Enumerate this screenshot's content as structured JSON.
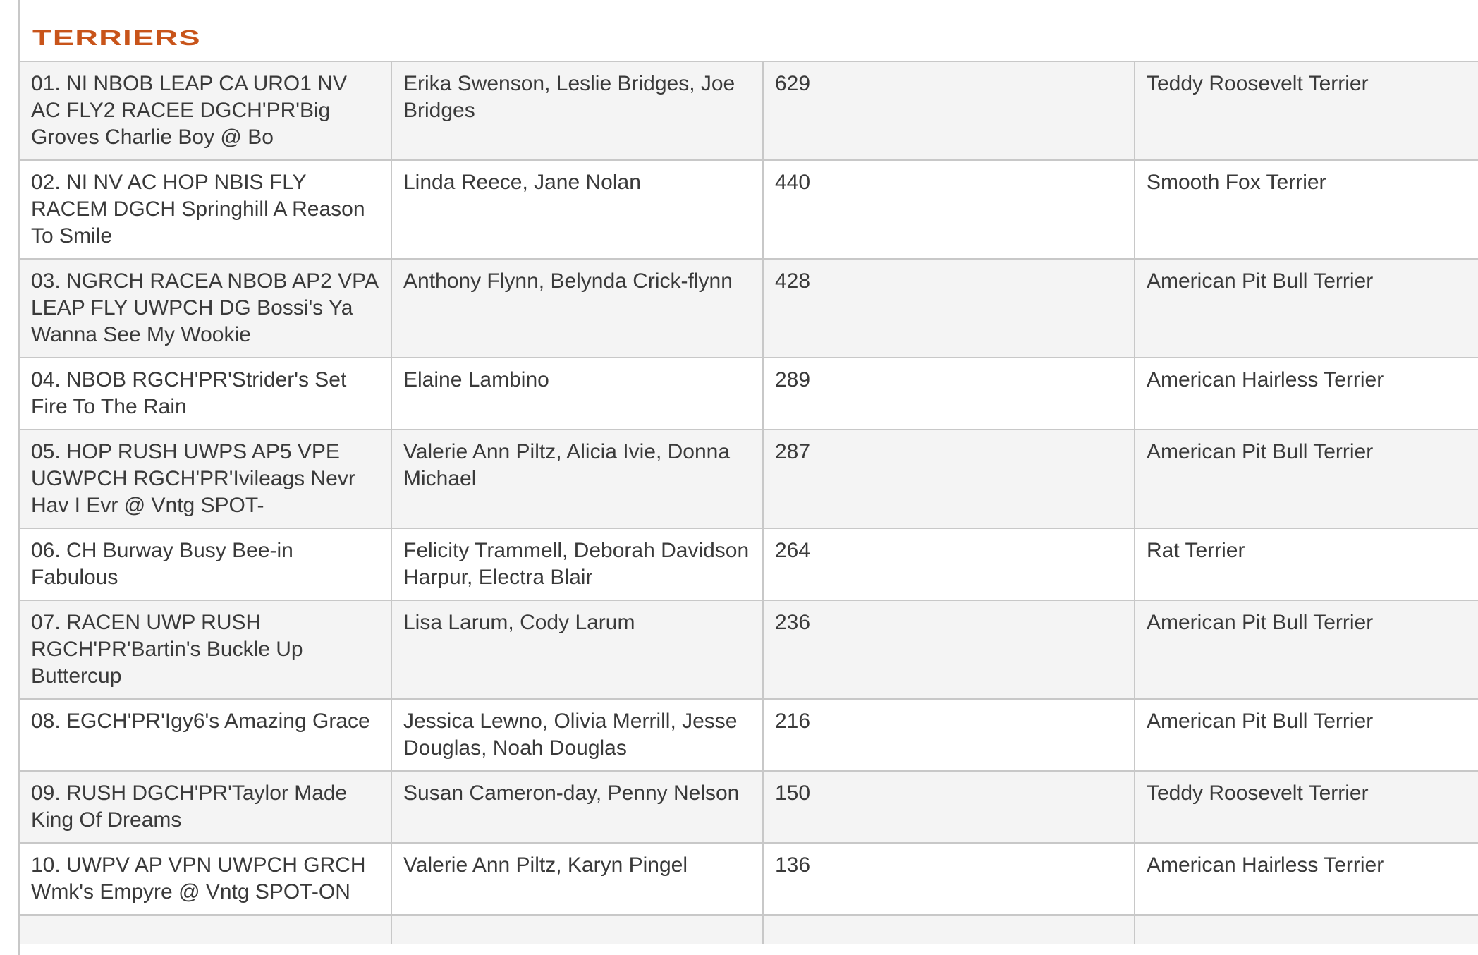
{
  "section_title": "TERRIERS",
  "colors": {
    "heading": "#c8541a",
    "row_alt": "#f4f4f4",
    "border": "#c8c8c8"
  },
  "rows": [
    {
      "dog": "01. NI NBOB LEAP CA URO1 NV AC FLY2 RACEE DGCH'PR'Big Groves Charlie Boy @ Bo",
      "owners": "Erika Swenson, Leslie Bridges, Joe Bridges",
      "points": "629",
      "breed": "Teddy Roosevelt Terrier"
    },
    {
      "dog": "02. NI NV AC HOP NBIS FLY RACEM DGCH Springhill A Reason To Smile",
      "owners": "Linda Reece, Jane Nolan",
      "points": "440",
      "breed": "Smooth Fox Terrier"
    },
    {
      "dog": "03. NGRCH RACEA NBOB AP2 VPA LEAP FLY UWPCH DG Bossi's Ya Wanna See My Wookie",
      "owners": "Anthony Flynn, Belynda Crick-flynn",
      "points": "428",
      "breed": "American Pit Bull Terrier"
    },
    {
      "dog": "04. NBOB RGCH'PR'Strider's Set Fire To The Rain",
      "owners": "Elaine Lambino",
      "points": "289",
      "breed": "American Hairless Terrier"
    },
    {
      "dog": "05. HOP RUSH UWPS AP5 VPE UGWPCH RGCH'PR'Ivileags Nevr Hav I Evr @ Vntg SPOT-",
      "owners": "Valerie Ann Piltz, Alicia Ivie, Donna Michael",
      "points": "287",
      "breed": "American Pit Bull Terrier"
    },
    {
      "dog": "06. CH Burway Busy Bee-in Fabulous",
      "owners": "Felicity Trammell, Deborah Davidson Harpur, Electra Blair",
      "points": "264",
      "breed": "Rat Terrier"
    },
    {
      "dog": "07. RACEN UWP RUSH RGCH'PR'Bartin's Buckle Up Buttercup",
      "owners": "Lisa Larum, Cody Larum",
      "points": "236",
      "breed": "American Pit Bull Terrier"
    },
    {
      "dog": "08. EGCH'PR'Igy6's Amazing Grace",
      "owners": "Jessica Lewno, Olivia Merrill, Jesse Douglas, Noah Douglas",
      "points": "216",
      "breed": "American Pit Bull Terrier"
    },
    {
      "dog": "09. RUSH DGCH'PR'Taylor Made King Of Dreams",
      "owners": "Susan Cameron-day, Penny Nelson",
      "points": "150",
      "breed": "Teddy Roosevelt Terrier"
    },
    {
      "dog": "10. UWPV AP VPN UWPCH GRCH Wmk's Empyre @ Vntg SPOT-ON",
      "owners": "Valerie Ann Piltz, Karyn Pingel",
      "points": "136",
      "breed": "American Hairless Terrier"
    }
  ]
}
